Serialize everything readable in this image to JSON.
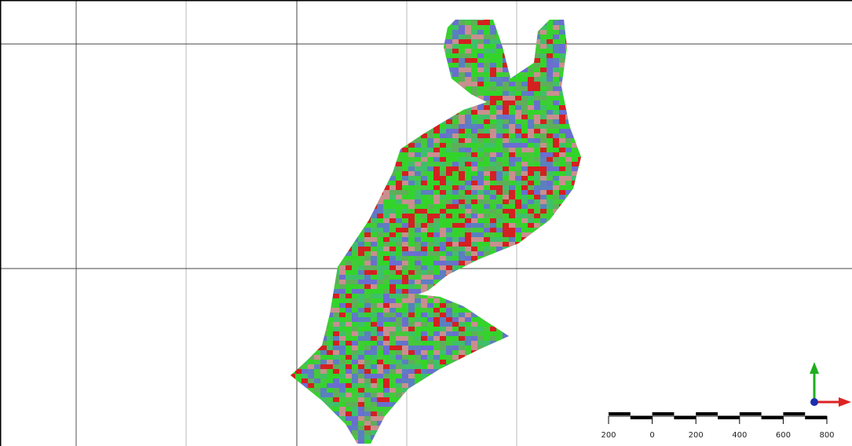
{
  "scale_bar": {
    "labels": [
      "200",
      "0",
      "200",
      "400",
      "600",
      "800"
    ]
  }
}
